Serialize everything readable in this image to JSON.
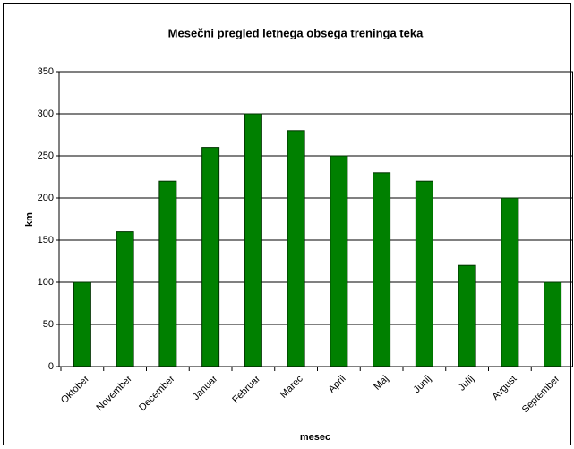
{
  "chart_data": {
    "type": "bar",
    "title": "Mesečni pregled letnega obsega treninga teka",
    "x_label": "mesec",
    "y_label": "km",
    "categories": [
      "Oktober",
      "November",
      "December",
      "Januar",
      "Februar",
      "Marec",
      "April",
      "Maj",
      "Junij",
      "Julij",
      "Avgust",
      "September"
    ],
    "values": [
      100,
      160,
      220,
      260,
      300,
      280,
      250,
      230,
      220,
      120,
      200,
      100
    ],
    "color": "#008000",
    "ylim": [
      0,
      350
    ],
    "yticks": [
      0,
      50,
      100,
      150,
      200,
      250,
      300,
      350
    ],
    "grid": true
  }
}
